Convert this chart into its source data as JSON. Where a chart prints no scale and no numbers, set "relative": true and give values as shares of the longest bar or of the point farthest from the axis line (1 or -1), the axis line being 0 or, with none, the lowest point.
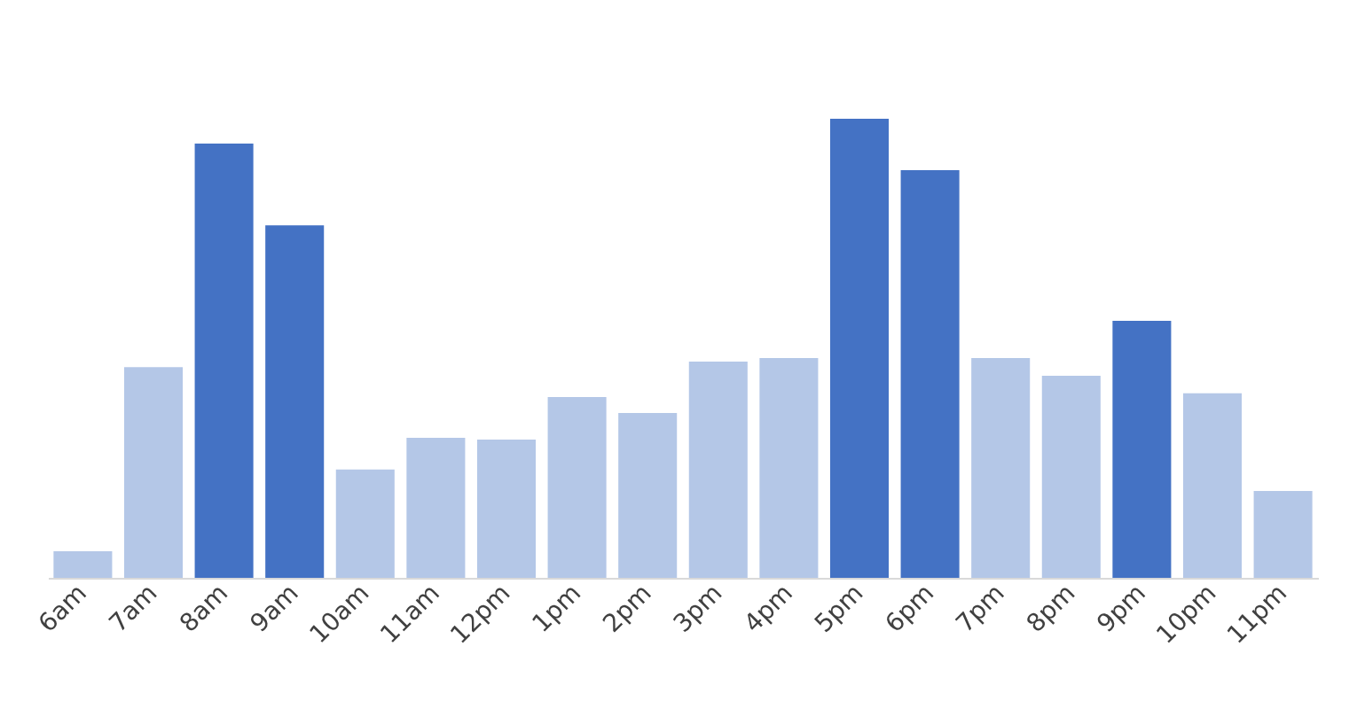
{
  "chart_data": {
    "type": "bar",
    "relative": true,
    "grid": false,
    "categories": [
      "6am",
      "7am",
      "8am",
      "9am",
      "10am",
      "11am",
      "12pm",
      "1pm",
      "2pm",
      "3pm",
      "4pm",
      "5pm",
      "6pm",
      "7pm",
      "8pm",
      "9pm",
      "10pm",
      "11pm"
    ],
    "values": [
      0.058,
      0.459,
      0.946,
      0.768,
      0.236,
      0.305,
      0.301,
      0.394,
      0.359,
      0.471,
      0.479,
      1,
      0.888,
      0.479,
      0.44,
      0.56,
      0.402,
      0.189
    ],
    "colors": [
      "#b4c7e7",
      "#b4c7e7",
      "#4472c4",
      "#4472c4",
      "#b4c7e7",
      "#b4c7e7",
      "#b4c7e7",
      "#b4c7e7",
      "#b4c7e7",
      "#b4c7e7",
      "#b4c7e7",
      "#4472c4",
      "#4472c4",
      "#b4c7e7",
      "#b4c7e7",
      "#4472c4",
      "#b4c7e7",
      "#b4c7e7"
    ]
  }
}
